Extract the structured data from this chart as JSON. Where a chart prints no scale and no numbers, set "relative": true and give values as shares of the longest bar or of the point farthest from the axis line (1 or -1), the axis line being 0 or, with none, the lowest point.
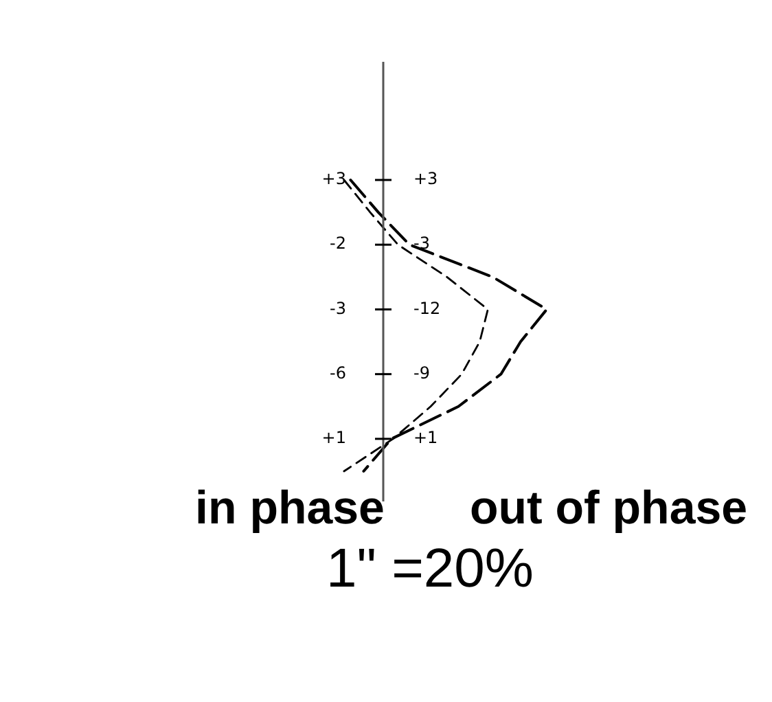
{
  "chart_data": {
    "type": "line",
    "orientation": "horizontal",
    "relative": true,
    "categories": [
      "+3",
      null,
      "-2",
      null,
      "-3",
      null,
      "-6",
      null,
      "+1",
      null
    ],
    "y2_categories": [
      "+3",
      null,
      "-3",
      null,
      "-12",
      null,
      "-9",
      null,
      "+1",
      null
    ],
    "series": [
      {
        "color": "#000000",
        "values": [
          -0.2,
          -0.03,
          0.16,
          0.67,
          1,
          0.84,
          0.72,
          0.46,
          0.05,
          -0.12
        ]
      },
      {
        "color": "#000000",
        "values": [
          -0.24,
          -0.08,
          0.09,
          0.39,
          0.64,
          0.59,
          0.48,
          0.29,
          0.06,
          -0.24
        ]
      }
    ],
    "line_style": "dashed",
    "annotations": [
      "in phase",
      "out of phase",
      "1\" =20%"
    ]
  }
}
